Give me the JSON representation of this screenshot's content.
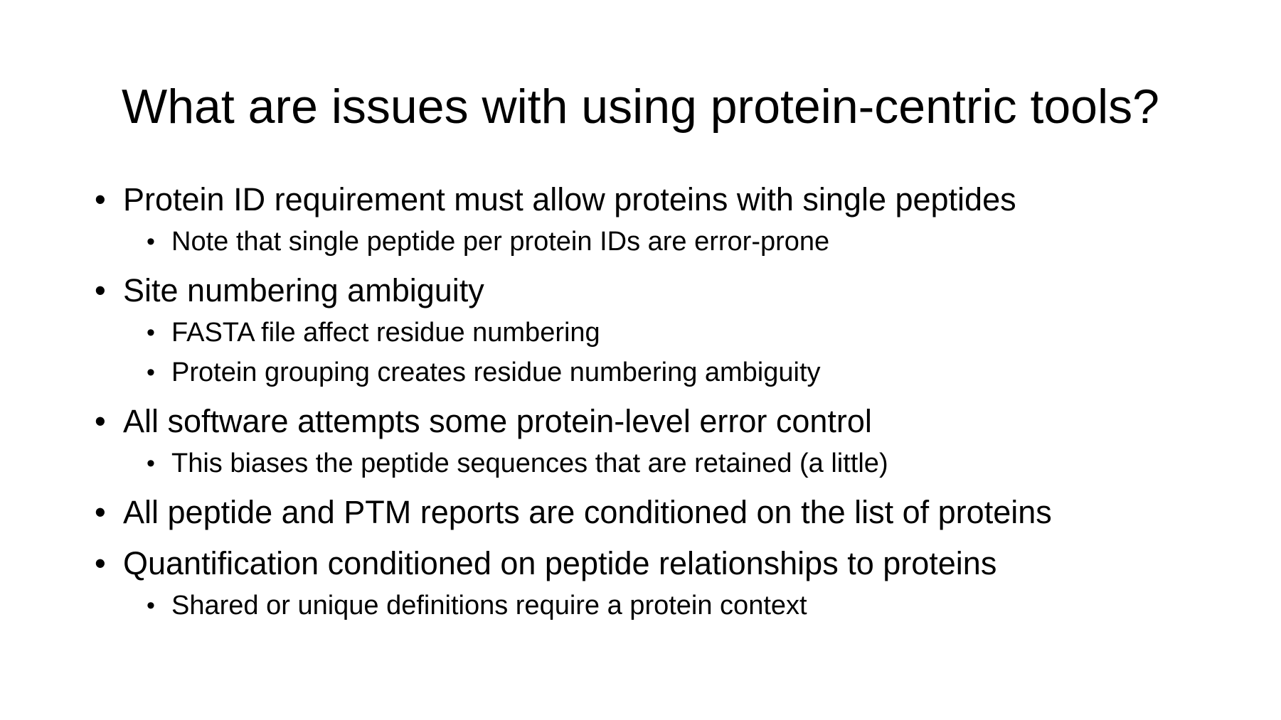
{
  "title": "What are issues with using protein-centric tools?",
  "bullets": [
    {
      "text": "Protein ID requirement must allow proteins with single peptides",
      "sub": [
        "Note that single peptide per protein IDs are error-prone"
      ]
    },
    {
      "text": "Site numbering ambiguity",
      "sub": [
        "FASTA file affect residue numbering",
        "Protein grouping creates residue numbering ambiguity"
      ]
    },
    {
      "text": "All software attempts some protein-level error control",
      "sub": [
        "This biases the peptide sequences that are retained (a little)"
      ]
    },
    {
      "text": "All peptide and PTM reports are conditioned on the list of proteins",
      "sub": []
    },
    {
      "text": "Quantification conditioned on peptide relationships to proteins",
      "sub": [
        "Shared or unique definitions require a protein context"
      ]
    }
  ]
}
